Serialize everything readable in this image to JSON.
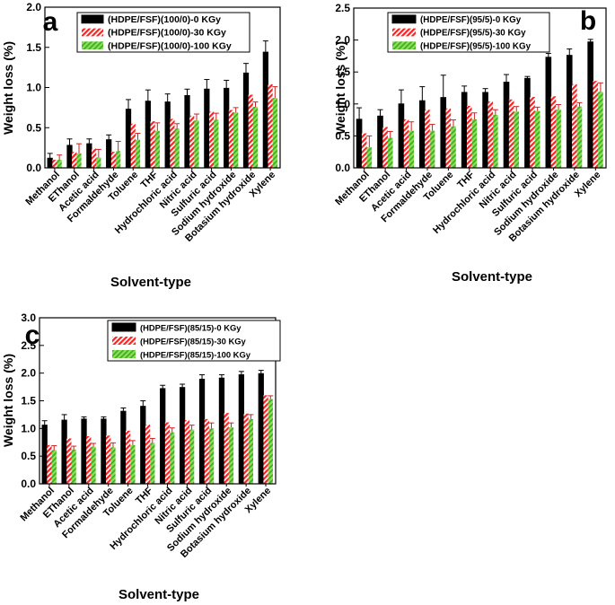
{
  "figure": {
    "width": 685,
    "height": 674
  },
  "colors": {
    "s0": "#000000",
    "s1": "#ff2020",
    "s2": "#55cc33",
    "error": "#cc2222",
    "axis": "#000000"
  },
  "chart_data": [
    {
      "type": "bar",
      "panel_label": "a",
      "xlabel": "Solvent-type",
      "ylabel": "Weight loss (%)",
      "ylim": [
        0,
        2.0
      ],
      "yticks": [
        "0.0",
        "0.5",
        "1.0",
        "1.5",
        "2.0"
      ],
      "legend_position": "top-right",
      "categories": [
        "Methanol",
        "EThanol",
        "Acetic acid",
        "Formaldehyde",
        "Toluene",
        "THF",
        "Hydrochloric acid",
        "Nitric acid",
        "Sulfuric acid",
        "Sodium hydroxide",
        "Botasium hydroxide",
        "Xylene"
      ],
      "series": [
        {
          "name": "(HDPE/FSF)(100/0)-0 KGy",
          "values": [
            0.12,
            0.28,
            0.3,
            0.35,
            0.73,
            0.83,
            0.82,
            0.9,
            0.98,
            0.99,
            1.18,
            1.44
          ],
          "errors": [
            0.06,
            0.08,
            0.06,
            0.06,
            0.12,
            0.14,
            0.1,
            0.08,
            0.12,
            0.1,
            0.12,
            0.14
          ]
        },
        {
          "name": "(HDPE/FSF)(100/0)-30 KGy",
          "values": [
            0.1,
            0.2,
            0.24,
            0.2,
            0.55,
            0.58,
            0.61,
            0.65,
            0.7,
            0.72,
            0.91,
            1.04
          ]
        },
        {
          "name": "(HDPE/FSF)(100/0)-100 KGy",
          "values": [
            0.1,
            0.18,
            0.13,
            0.21,
            0.35,
            0.46,
            0.49,
            0.59,
            0.6,
            0.69,
            0.76,
            0.87
          ],
          "errors": [
            0.06,
            0.12,
            0.1,
            0.12,
            0.08,
            0.1,
            0.06,
            0.08,
            0.08,
            0.06,
            0.06,
            0.14
          ]
        }
      ]
    },
    {
      "type": "bar",
      "panel_label": "b",
      "xlabel": "Solvent-type",
      "ylabel": "Weight loss (%)",
      "ylim": [
        0,
        2.5
      ],
      "yticks": [
        "0.0",
        "0.5",
        "1.0",
        "1.5",
        "2.0",
        "2.5"
      ],
      "legend_position": "top-right",
      "categories": [
        "Methanol",
        "EThanol",
        "Acetic acid",
        "Formaldehyde",
        "Toluene",
        "THF",
        "Hydrochloric acid",
        "Nitric acid",
        "Sulfuric acid",
        "Sodium hydroxide",
        "Botasium hydroxide",
        "Xylene"
      ],
      "series": [
        {
          "name": "(HDPE/FSF)(95/5)-0 KGy",
          "values": [
            0.76,
            0.81,
            1.0,
            1.05,
            1.1,
            1.18,
            1.18,
            1.34,
            1.4,
            1.73,
            1.76,
            1.97
          ],
          "errors": [
            0.18,
            0.1,
            0.22,
            0.22,
            0.35,
            0.1,
            0.06,
            0.12,
            0.03,
            0.06,
            0.1,
            0.04
          ]
        },
        {
          "name": "(HDPE/FSF)(95/5)-30 KGy",
          "values": [
            0.54,
            0.64,
            0.76,
            0.91,
            0.93,
            0.97,
            1.04,
            1.07,
            1.11,
            1.12,
            1.31,
            1.36
          ]
        },
        {
          "name": "(HDPE/FSF)(95/5)-100 KGy",
          "values": [
            0.32,
            0.47,
            0.58,
            0.58,
            0.65,
            0.76,
            0.83,
            0.88,
            0.89,
            0.91,
            0.96,
            1.19
          ],
          "errors": [
            0.18,
            0.1,
            0.14,
            0.1,
            0.1,
            0.1,
            0.08,
            0.08,
            0.06,
            0.08,
            0.06,
            0.14
          ]
        }
      ]
    },
    {
      "type": "bar",
      "panel_label": "c",
      "xlabel": "Solvent-type",
      "ylabel": "Weight loss (%)",
      "ylim": [
        0,
        3.0
      ],
      "yticks": [
        "0.0",
        "0.5",
        "1.0",
        "1.5",
        "2.0",
        "2.5",
        "3.0"
      ],
      "legend_position": "top-right",
      "categories": [
        "Methanol",
        "EThanol",
        "Acetic acid",
        "Formaldehyde",
        "Toluene",
        "THF",
        "Hydrochloric acid",
        "Nitric acid",
        "Sulfuric acid",
        "Sodium hydroxide",
        "Botasium hydroxide",
        "Xylene"
      ],
      "series": [
        {
          "name": "(HDPE/FSF)(85/15)-0 KGy",
          "values": [
            1.06,
            1.15,
            1.17,
            1.17,
            1.31,
            1.4,
            1.72,
            1.74,
            1.89,
            1.91,
            1.97,
            1.99
          ],
          "errors": [
            0.08,
            0.1,
            0.04,
            0.04,
            0.06,
            0.1,
            0.06,
            0.06,
            0.08,
            0.06,
            0.06,
            0.06
          ]
        },
        {
          "name": "(HDPE/FSF)(85/15)-30 KGy",
          "values": [
            0.7,
            0.82,
            0.86,
            0.87,
            0.96,
            1.07,
            1.11,
            1.15,
            1.17,
            1.28,
            1.27,
            1.6
          ]
        },
        {
          "name": "(HDPE/FSF)(85/15)-100 KGy",
          "values": [
            0.61,
            0.62,
            0.67,
            0.66,
            0.7,
            0.74,
            0.93,
            0.98,
            1.0,
            1.02,
            1.17,
            1.53
          ],
          "errors": [
            0.08,
            0.06,
            0.06,
            0.08,
            0.08,
            0.08,
            0.08,
            0.08,
            0.1,
            0.08,
            0.08,
            0.06
          ]
        }
      ]
    }
  ]
}
